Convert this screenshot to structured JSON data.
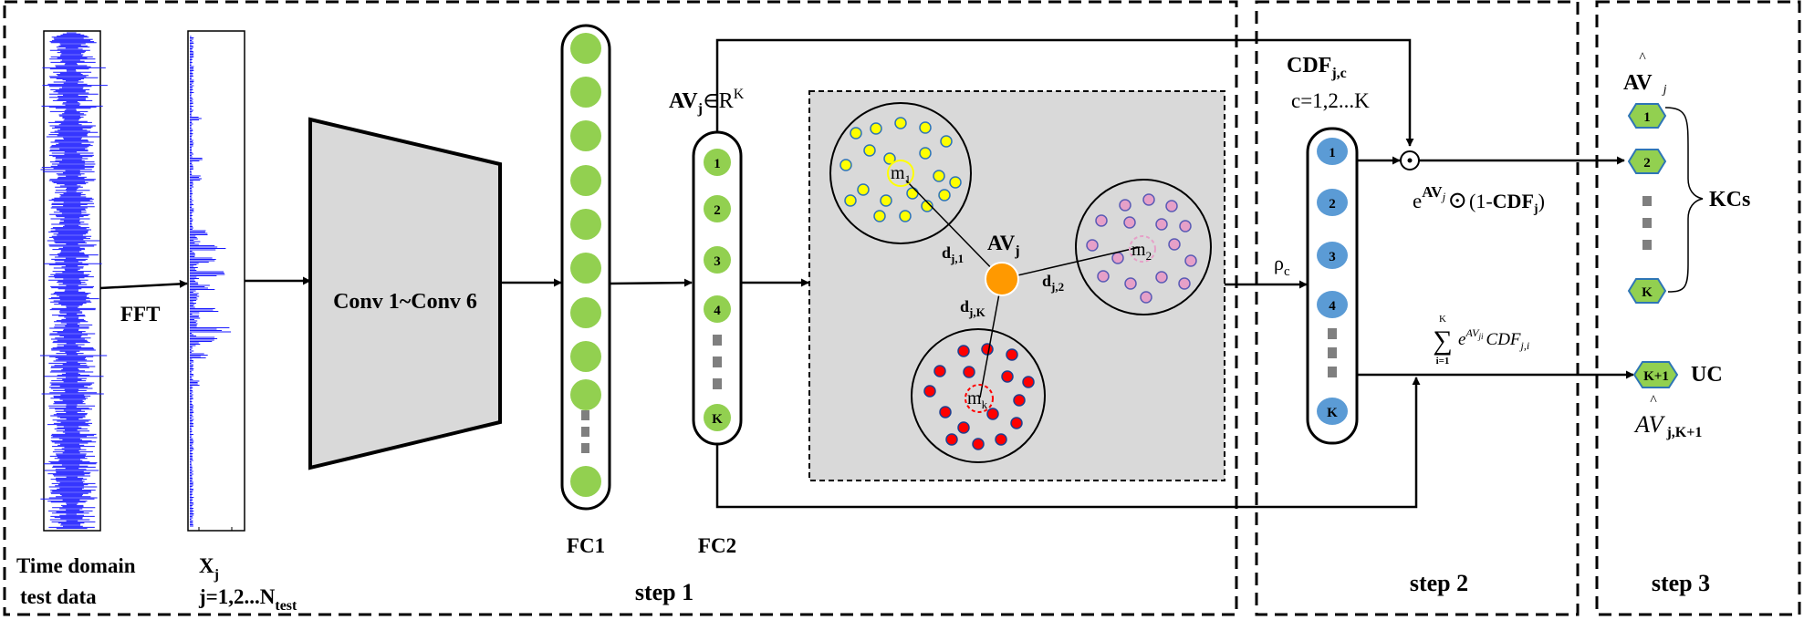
{
  "steps": {
    "step1": "step 1",
    "step2": "step 2",
    "step3": "step 3"
  },
  "input": {
    "time_domain_line1": "Time domain",
    "time_domain_line2": "test data",
    "fft": "FFT",
    "xj_base": "X",
    "xj_sub": "j",
    "j_range_base": "j=1,2...N",
    "j_range_sub": "test"
  },
  "network": {
    "conv": "Conv 1~Conv 6",
    "fc1": "FC1",
    "fc2": "FC2",
    "fc2_nodes": [
      "1",
      "2",
      "3",
      "4",
      "K"
    ],
    "av_base": "AV",
    "av_sub": "j",
    "av_rest": "∈R",
    "av_sup": "K"
  },
  "clusters": {
    "m1_base": "m",
    "m1_sub": "1",
    "m2_base": "m",
    "m2_sub": "2",
    "mk_base": "m",
    "mk_sub": "k",
    "center_base": "AV",
    "center_sub": "j",
    "d1_base": "d",
    "d1_sub": "j,1",
    "d2_base": "d",
    "d2_sub": "j,2",
    "dk_base": "d",
    "dk_sub": "j,K"
  },
  "step2": {
    "cdf_base": "CDF",
    "cdf_sub": "j,c",
    "c_range": "c=1,2...K",
    "rho_base": "ρ",
    "rho_sub": "c",
    "nodes": [
      "1",
      "2",
      "3",
      "4",
      "K"
    ],
    "odot": "⊙",
    "formula_e": "e",
    "formula_sup_av": "AV",
    "formula_sup_j": "j",
    "formula_odot": "⊙",
    "formula_rest": "(1-",
    "formula_cdf": "CDF",
    "formula_cdf_sub": "j",
    "formula_close": ")",
    "sum_top": "K",
    "sum_sign": "∑",
    "sum_bottom": "i=1",
    "sum_e": "e",
    "sum_sup": "AV",
    "sum_sup_sub": "ji",
    "sum_cdf": "CDF",
    "sum_cdf_sub": "j,i"
  },
  "step3": {
    "avhat_base": "AV",
    "avhat_sub": "j",
    "hat": "^",
    "nodes": [
      "1",
      "2",
      "K"
    ],
    "kcs": "KCs",
    "uc_node": "K+1",
    "uc": "UC",
    "avhat2_base": "AV",
    "avhat2_sub": "j,K+1"
  },
  "colors": {
    "signal": "#1a1aff",
    "green_node": "#92d050",
    "blue_node": "#5b9bd5",
    "orange": "#ff9900",
    "gray_panel": "#d9d9d9",
    "yellow_dot": "#ffff00",
    "pink_dot": "#e6a0c8",
    "red_dot": "#ff0000"
  }
}
